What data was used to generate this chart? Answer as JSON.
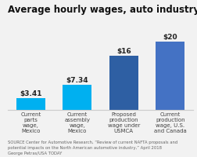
{
  "title": "Average hourly wages, auto industry",
  "categories": [
    "Current\nparts\nwage,\nMexico",
    "Current\nassembly\nwage,\nMexico",
    "Proposed\nproduction\nwage under\nUSMCA",
    "Current\nproduction\nwage, U.S.\nand Canada"
  ],
  "values": [
    3.41,
    7.34,
    16,
    20
  ],
  "labels": [
    "$3.41",
    "$7.34",
    "$16",
    "$20"
  ],
  "bar_colors": [
    "#00b0f0",
    "#00b0f0",
    "#2e5fa3",
    "#4472c4"
  ],
  "background_color": "#f2f2f2",
  "source_text": "SOURCE Center for Automotive Research, “Review of current NAFTA proposals and\npotential impacts on the North American automotive industry,” April 2018\nGeorge Petras/USA TODAY",
  "ylim": [
    0,
    24
  ],
  "title_fontsize": 8.5,
  "label_fontsize": 6.5,
  "tick_fontsize": 5.0,
  "source_fontsize": 3.8
}
